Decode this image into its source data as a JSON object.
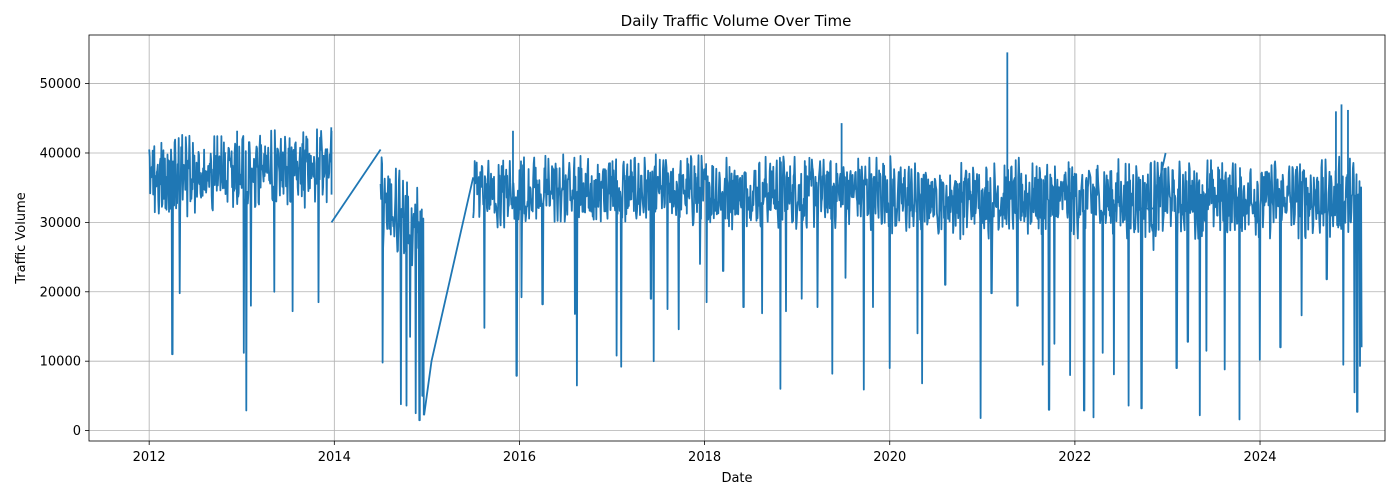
{
  "chart_data": {
    "type": "line",
    "title": "Daily Traffic Volume Over Time",
    "xlabel": "Date",
    "ylabel": "Traffic Volume",
    "xlim": [
      2011.35,
      2025.35
    ],
    "ylim": [
      -1500,
      57000
    ],
    "grid": true,
    "legend": "none",
    "x_ticks": [
      2012,
      2014,
      2016,
      2018,
      2020,
      2022,
      2024
    ],
    "x_tick_labels": [
      "2012",
      "2014",
      "2016",
      "2018",
      "2020",
      "2022",
      "2024"
    ],
    "y_ticks": [
      0,
      10000,
      20000,
      30000,
      40000,
      50000
    ],
    "y_tick_labels": [
      "0",
      "10000",
      "20000",
      "30000",
      "40000",
      "50000"
    ],
    "series": [
      {
        "name": "traffic_volume",
        "color": "#1f77b4",
        "segments": [
          {
            "start": 2012.0,
            "end": 2013.97,
            "base": 36500,
            "amp": 4500,
            "trend": 1500,
            "dips": [
              [
                2012.25,
                11000
              ],
              [
                2012.33,
                19800
              ],
              [
                2013.02,
                11200
              ],
              [
                2013.05,
                2900
              ],
              [
                2013.1,
                18000
              ],
              [
                2013.35,
                20000
              ],
              [
                2013.55,
                17200
              ],
              [
                2013.83,
                18500
              ],
              [
                2013.98,
                20100
              ]
            ]
          },
          {
            "start": 2014.5,
            "end": 2014.97,
            "base": 33000,
            "amp": 5000,
            "trend": -4000,
            "dips": [
              [
                2014.52,
                9800
              ],
              [
                2014.72,
                3800
              ],
              [
                2014.78,
                3600
              ],
              [
                2014.82,
                13500
              ],
              [
                2014.88,
                2500
              ],
              [
                2014.92,
                1500
              ],
              [
                2014.95,
                5000
              ],
              [
                2014.97,
                2200
              ]
            ]
          },
          {
            "start": 2015.5,
            "end": 2020.02,
            "base": 34500,
            "amp": 4200,
            "trend": 0,
            "dips": [
              [
                2015.62,
                14800
              ],
              [
                2015.97,
                7900
              ],
              [
                2016.02,
                19200
              ],
              [
                2016.25,
                18200
              ],
              [
                2016.6,
                16800
              ],
              [
                2016.62,
                6500
              ],
              [
                2017.05,
                10800
              ],
              [
                2017.1,
                9200
              ],
              [
                2017.42,
                19000
              ],
              [
                2017.45,
                10000
              ],
              [
                2017.6,
                17500
              ],
              [
                2017.72,
                14600
              ],
              [
                2017.95,
                24000
              ],
              [
                2018.02,
                18500
              ],
              [
                2018.2,
                23000
              ],
              [
                2018.42,
                17800
              ],
              [
                2018.62,
                16900
              ],
              [
                2018.82,
                6000
              ],
              [
                2018.88,
                17200
              ],
              [
                2019.05,
                19000
              ],
              [
                2019.22,
                17800
              ],
              [
                2019.38,
                8200
              ],
              [
                2019.52,
                22000
              ],
              [
                2019.72,
                5900
              ],
              [
                2019.82,
                17800
              ],
              [
                2020.0,
                9000
              ]
            ]
          },
          {
            "start": 2020.02,
            "end": 2025.1,
            "base": 33500,
            "amp": 4500,
            "trend": 0,
            "dips": [
              [
                2020.3,
                14000
              ],
              [
                2020.35,
                6800
              ],
              [
                2020.6,
                21000
              ],
              [
                2020.98,
                1800
              ],
              [
                2021.1,
                19800
              ],
              [
                2021.38,
                18000
              ],
              [
                2021.65,
                9500
              ],
              [
                2021.72,
                3000
              ],
              [
                2021.78,
                12500
              ],
              [
                2021.95,
                8000
              ],
              [
                2022.1,
                2900
              ],
              [
                2022.2,
                1900
              ],
              [
                2022.3,
                11200
              ],
              [
                2022.42,
                8100
              ],
              [
                2022.58,
                3600
              ],
              [
                2022.72,
                3200
              ],
              [
                2022.85,
                26000
              ],
              [
                2023.1,
                9000
              ],
              [
                2023.22,
                12800
              ],
              [
                2023.35,
                2200
              ],
              [
                2023.42,
                11500
              ],
              [
                2023.62,
                8800
              ],
              [
                2023.78,
                1600
              ],
              [
                2024.0,
                10200
              ],
              [
                2024.22,
                12000
              ],
              [
                2024.45,
                16600
              ],
              [
                2024.72,
                21800
              ],
              [
                2024.9,
                9500
              ],
              [
                2025.02,
                5500
              ],
              [
                2025.05,
                2700
              ],
              [
                2025.08,
                9300
              ],
              [
                2025.1,
                12000
              ]
            ]
          }
        ],
        "gap_bridges": [
          [
            [
              2013.97,
              30000
            ],
            [
              2014.5,
              40500
            ]
          ],
          [
            [
              2014.97,
              2200
            ],
            [
              2015.05,
              10000
            ],
            [
              2015.5,
              36500
            ]
          ],
          [
            [
              2022.65,
              32000
            ],
            [
              2022.85,
              32000
            ],
            [
              2022.98,
              40000
            ]
          ]
        ],
        "notable_points": [
          {
            "x": 2021.27,
            "y": 54500
          },
          {
            "x": 2024.88,
            "y": 47000
          },
          {
            "x": 2024.82,
            "y": 46000
          },
          {
            "x": 2024.95,
            "y": 46200
          },
          {
            "x": 2019.48,
            "y": 44300
          },
          {
            "x": 2012.95,
            "y": 43200
          },
          {
            "x": 2013.97,
            "y": 43200
          },
          {
            "x": 2015.93,
            "y": 43200
          }
        ]
      }
    ]
  }
}
